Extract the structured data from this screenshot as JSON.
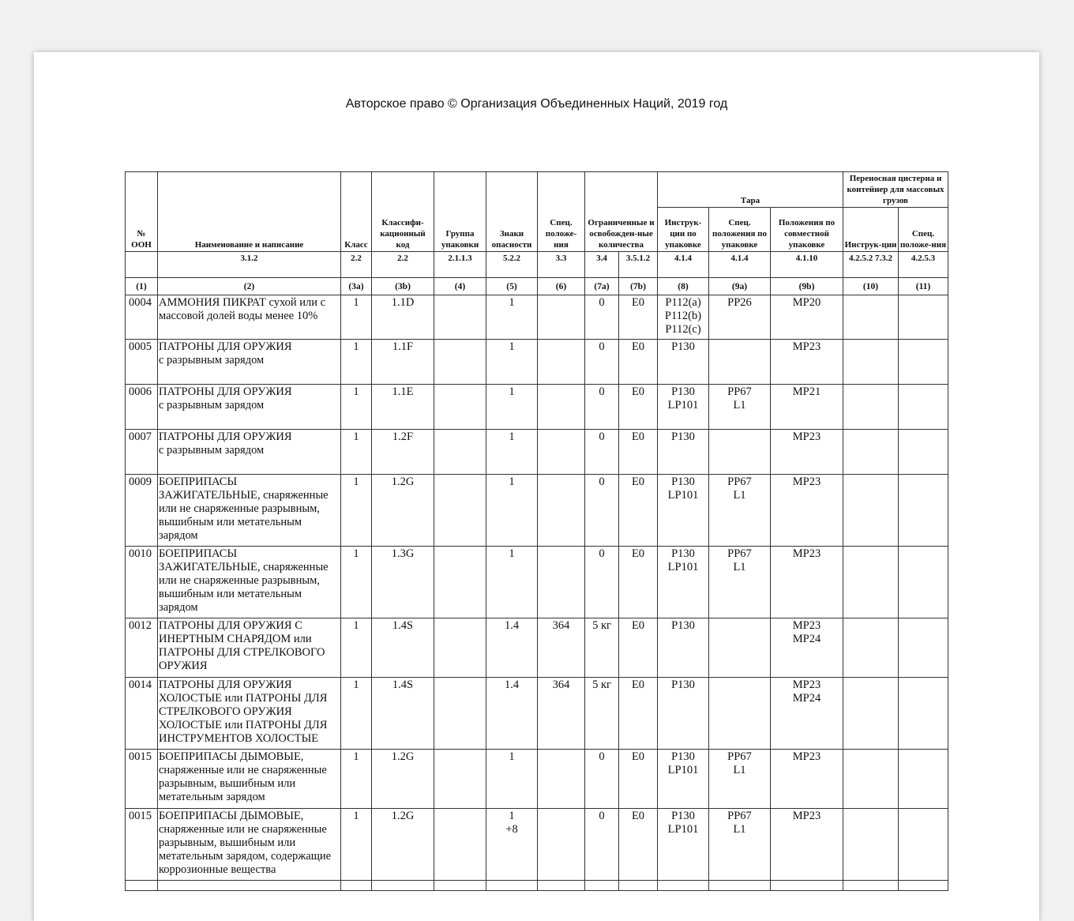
{
  "title": "Авторское право © Организация Объединенных Наций, 2019 год",
  "header": {
    "un_no": "№ ООН",
    "name": "Наименование и написание",
    "class": "Класс",
    "code": "Классифи-кационный код",
    "pg": "Группа упаковки",
    "labels": "Знаки опасности",
    "sp": "Спец. положе-ния",
    "lq": "Ограниченные и освобожден-ные количества",
    "packaging": "Тара",
    "pi": "Инструк-ции по упаковке",
    "psp": "Спец. положения по упаковке",
    "mixed": "Положения по совместной упаковке",
    "tank": "Переносная цистерна и контейнер для массовых грузов",
    "ti": "Инструк-ции",
    "tsp": "Спец. положе-ния"
  },
  "sections": [
    "",
    "3.1.2",
    "2.2",
    "2.2",
    "2.1.1.3",
    "5.2.2",
    "3.3",
    "3.4",
    "3.5.1.2",
    "4.1.4",
    "4.1.4",
    "4.1.10",
    "4.2.5.2 7.3.2",
    "4.2.5.3"
  ],
  "col_numbers": [
    "(1)",
    "(2)",
    "(3a)",
    "(3b)",
    "(4)",
    "(5)",
    "(6)",
    "(7a)",
    "(7b)",
    "(8)",
    "(9a)",
    "(9b)",
    "(10)",
    "(11)"
  ],
  "rows": [
    {
      "c": [
        "0004",
        "АММОНИЯ ПИКРАТ сухой или с массовой долей воды менее 10%",
        "1",
        "1.1D",
        "",
        "1",
        "",
        "0",
        "E0",
        "P112(a)\nP112(b)\nP112(c)",
        "PP26",
        "MP20",
        "",
        ""
      ]
    },
    {
      "c": [
        "0005",
        "ПАТРОНЫ ДЛЯ ОРУЖИЯ\nс разрывным зарядом",
        "1",
        "1.1F",
        "",
        "1",
        "",
        "0",
        "E0",
        "P130",
        "",
        "MP23",
        "",
        ""
      ]
    },
    {
      "c": [
        "0006",
        "ПАТРОНЫ ДЛЯ ОРУЖИЯ\nс разрывным зарядом",
        "1",
        "1.1E",
        "",
        "1",
        "",
        "0",
        "E0",
        "P130\nLP101",
        "PP67\nL1",
        "MP21",
        "",
        ""
      ]
    },
    {
      "c": [
        "0007",
        "ПАТРОНЫ ДЛЯ ОРУЖИЯ\nс разрывным зарядом",
        "1",
        "1.2F",
        "",
        "1",
        "",
        "0",
        "E0",
        "P130",
        "",
        "MP23",
        "",
        ""
      ]
    },
    {
      "c": [
        "0009",
        "БОЕПРИПАСЫ\nЗАЖИГАТЕЛЬНЫЕ, снаряженные или не снаряженные разрывным, вышибным или метательным зарядом",
        "1",
        "1.2G",
        "",
        "1",
        "",
        "0",
        "E0",
        "P130\nLP101",
        "PP67\nL1",
        "MP23",
        "",
        ""
      ]
    },
    {
      "c": [
        "0010",
        "БОЕПРИПАСЫ\nЗАЖИГАТЕЛЬНЫЕ, снаряженные или не снаряженные разрывным, вышибным или метательным зарядом",
        "1",
        "1.3G",
        "",
        "1",
        "",
        "0",
        "E0",
        "P130\nLP101",
        "PP67\nL1",
        "MP23",
        "",
        ""
      ]
    },
    {
      "c": [
        "0012",
        "ПАТРОНЫ ДЛЯ ОРУЖИЯ С ИНЕРТНЫМ СНАРЯДОМ или ПАТРОНЫ ДЛЯ СТРЕЛКОВОГО ОРУЖИЯ",
        "1",
        "1.4S",
        "",
        "1.4",
        "364",
        "5 кг",
        "E0",
        "P130",
        "",
        "MP23\nMP24",
        "",
        ""
      ]
    },
    {
      "c": [
        "0014",
        "ПАТРОНЫ ДЛЯ ОРУЖИЯ ХОЛОСТЫЕ или ПАТРОНЫ ДЛЯ СТРЕЛКОВОГО ОРУЖИЯ ХОЛОСТЫЕ или ПАТРОНЫ ДЛЯ ИНСТРУМЕНТОВ ХОЛОСТЫЕ",
        "1",
        "1.4S",
        "",
        "1.4",
        "364",
        "5 кг",
        "E0",
        "P130",
        "",
        "MP23\nMP24",
        "",
        ""
      ]
    },
    {
      "c": [
        "0015",
        "БОЕПРИПАСЫ ДЫМОВЫЕ, снаряженные или не снаряженные разрывным, вышибным или метательным зарядом",
        "1",
        "1.2G",
        "",
        "1",
        "",
        "0",
        "E0",
        "P130\nLP101",
        "PP67\nL1",
        "MP23",
        "",
        ""
      ]
    },
    {
      "c": [
        "0015",
        "БОЕПРИПАСЫ ДЫМОВЫЕ, снаряженные или не снаряженные разрывным, вышибным или метательным зарядом, содержащие коррозионные вещества",
        "1",
        "1.2G",
        "",
        "1\n+8",
        "",
        "0",
        "E0",
        "P130\nLP101",
        "PP67\nL1",
        "MP23",
        "",
        ""
      ]
    }
  ]
}
